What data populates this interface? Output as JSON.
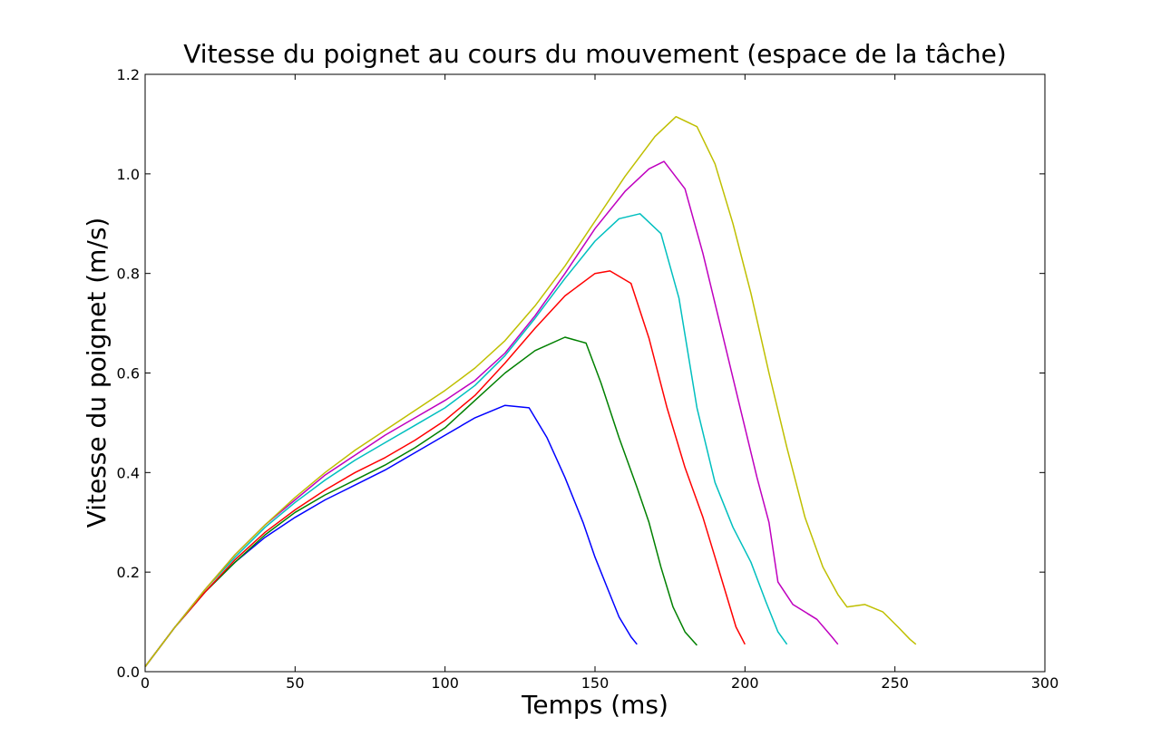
{
  "chart_data": {
    "type": "line",
    "title": "Vitesse du poignet au cours du mouvement (espace de la tâche)",
    "xlabel": "Temps (ms)",
    "ylabel": "Vitesse du poignet (m/s)",
    "xlim": [
      0,
      300
    ],
    "ylim": [
      0,
      1.2
    ],
    "xticks": [
      0,
      50,
      100,
      150,
      200,
      250,
      300
    ],
    "xtick_labels": [
      "0",
      "50",
      "100",
      "150",
      "200",
      "250",
      "300"
    ],
    "yticks": [
      0,
      0.2,
      0.4,
      0.6,
      0.8,
      1.0,
      1.2
    ],
    "ytick_labels": [
      "0.0",
      "0.2",
      "0.4",
      "0.6",
      "0.8",
      "1.0",
      "1.2"
    ],
    "grid": false,
    "legend": "none",
    "series": [
      {
        "color": "#0000ff",
        "points": [
          [
            0,
            0.01
          ],
          [
            10,
            0.09
          ],
          [
            20,
            0.16
          ],
          [
            30,
            0.22
          ],
          [
            40,
            0.27
          ],
          [
            50,
            0.31
          ],
          [
            60,
            0.345
          ],
          [
            70,
            0.375
          ],
          [
            80,
            0.405
          ],
          [
            90,
            0.44
          ],
          [
            100,
            0.475
          ],
          [
            110,
            0.51
          ],
          [
            120,
            0.535
          ],
          [
            128,
            0.53
          ],
          [
            134,
            0.47
          ],
          [
            140,
            0.39
          ],
          [
            146,
            0.3
          ],
          [
            150,
            0.23
          ],
          [
            154,
            0.17
          ],
          [
            158,
            0.11
          ],
          [
            162,
            0.07
          ],
          [
            164,
            0.055
          ]
        ]
      },
      {
        "color": "#008000",
        "points": [
          [
            0,
            0.01
          ],
          [
            10,
            0.09
          ],
          [
            20,
            0.16
          ],
          [
            30,
            0.22
          ],
          [
            40,
            0.275
          ],
          [
            50,
            0.32
          ],
          [
            60,
            0.355
          ],
          [
            70,
            0.385
          ],
          [
            80,
            0.415
          ],
          [
            90,
            0.45
          ],
          [
            100,
            0.49
          ],
          [
            110,
            0.545
          ],
          [
            120,
            0.6
          ],
          [
            130,
            0.645
          ],
          [
            140,
            0.672
          ],
          [
            147,
            0.66
          ],
          [
            152,
            0.58
          ],
          [
            158,
            0.47
          ],
          [
            164,
            0.37
          ],
          [
            168,
            0.3
          ],
          [
            172,
            0.21
          ],
          [
            176,
            0.13
          ],
          [
            180,
            0.08
          ],
          [
            184,
            0.053
          ]
        ]
      },
      {
        "color": "#ff0000",
        "points": [
          [
            0,
            0.01
          ],
          [
            10,
            0.09
          ],
          [
            20,
            0.16
          ],
          [
            30,
            0.225
          ],
          [
            40,
            0.28
          ],
          [
            50,
            0.325
          ],
          [
            60,
            0.365
          ],
          [
            70,
            0.4
          ],
          [
            80,
            0.43
          ],
          [
            90,
            0.465
          ],
          [
            100,
            0.505
          ],
          [
            110,
            0.555
          ],
          [
            120,
            0.62
          ],
          [
            130,
            0.69
          ],
          [
            140,
            0.755
          ],
          [
            150,
            0.8
          ],
          [
            155,
            0.805
          ],
          [
            162,
            0.78
          ],
          [
            168,
            0.67
          ],
          [
            174,
            0.53
          ],
          [
            180,
            0.41
          ],
          [
            186,
            0.31
          ],
          [
            190,
            0.23
          ],
          [
            194,
            0.15
          ],
          [
            197,
            0.09
          ],
          [
            200,
            0.055
          ]
        ]
      },
      {
        "color": "#00bfbf",
        "points": [
          [
            0,
            0.01
          ],
          [
            10,
            0.09
          ],
          [
            20,
            0.165
          ],
          [
            30,
            0.23
          ],
          [
            40,
            0.29
          ],
          [
            50,
            0.34
          ],
          [
            60,
            0.385
          ],
          [
            70,
            0.425
          ],
          [
            80,
            0.46
          ],
          [
            90,
            0.495
          ],
          [
            100,
            0.53
          ],
          [
            110,
            0.575
          ],
          [
            120,
            0.635
          ],
          [
            130,
            0.71
          ],
          [
            140,
            0.79
          ],
          [
            150,
            0.865
          ],
          [
            158,
            0.91
          ],
          [
            165,
            0.92
          ],
          [
            172,
            0.88
          ],
          [
            178,
            0.75
          ],
          [
            184,
            0.53
          ],
          [
            190,
            0.38
          ],
          [
            196,
            0.29
          ],
          [
            202,
            0.22
          ],
          [
            207,
            0.14
          ],
          [
            211,
            0.08
          ],
          [
            214,
            0.055
          ]
        ]
      },
      {
        "color": "#bf00bf",
        "points": [
          [
            0,
            0.01
          ],
          [
            10,
            0.09
          ],
          [
            20,
            0.165
          ],
          [
            30,
            0.235
          ],
          [
            40,
            0.295
          ],
          [
            50,
            0.345
          ],
          [
            60,
            0.395
          ],
          [
            70,
            0.435
          ],
          [
            80,
            0.475
          ],
          [
            90,
            0.51
          ],
          [
            100,
            0.545
          ],
          [
            110,
            0.585
          ],
          [
            120,
            0.64
          ],
          [
            130,
            0.715
          ],
          [
            140,
            0.8
          ],
          [
            150,
            0.89
          ],
          [
            160,
            0.965
          ],
          [
            168,
            1.01
          ],
          [
            173,
            1.025
          ],
          [
            180,
            0.97
          ],
          [
            186,
            0.84
          ],
          [
            192,
            0.69
          ],
          [
            198,
            0.54
          ],
          [
            204,
            0.39
          ],
          [
            208,
            0.3
          ],
          [
            211,
            0.18
          ],
          [
            216,
            0.135
          ],
          [
            224,
            0.105
          ],
          [
            229,
            0.07
          ],
          [
            231,
            0.055
          ]
        ]
      },
      {
        "color": "#bfbf00",
        "points": [
          [
            0,
            0.01
          ],
          [
            10,
            0.09
          ],
          [
            20,
            0.165
          ],
          [
            30,
            0.235
          ],
          [
            40,
            0.295
          ],
          [
            50,
            0.35
          ],
          [
            60,
            0.4
          ],
          [
            70,
            0.445
          ],
          [
            80,
            0.485
          ],
          [
            90,
            0.525
          ],
          [
            100,
            0.565
          ],
          [
            110,
            0.61
          ],
          [
            120,
            0.665
          ],
          [
            130,
            0.735
          ],
          [
            140,
            0.815
          ],
          [
            150,
            0.905
          ],
          [
            160,
            0.995
          ],
          [
            170,
            1.075
          ],
          [
            177,
            1.115
          ],
          [
            184,
            1.095
          ],
          [
            190,
            1.02
          ],
          [
            196,
            0.9
          ],
          [
            202,
            0.76
          ],
          [
            208,
            0.6
          ],
          [
            214,
            0.45
          ],
          [
            220,
            0.31
          ],
          [
            226,
            0.21
          ],
          [
            231,
            0.155
          ],
          [
            234,
            0.13
          ],
          [
            240,
            0.135
          ],
          [
            246,
            0.12
          ],
          [
            251,
            0.09
          ],
          [
            255,
            0.065
          ],
          [
            257,
            0.055
          ]
        ]
      }
    ]
  }
}
